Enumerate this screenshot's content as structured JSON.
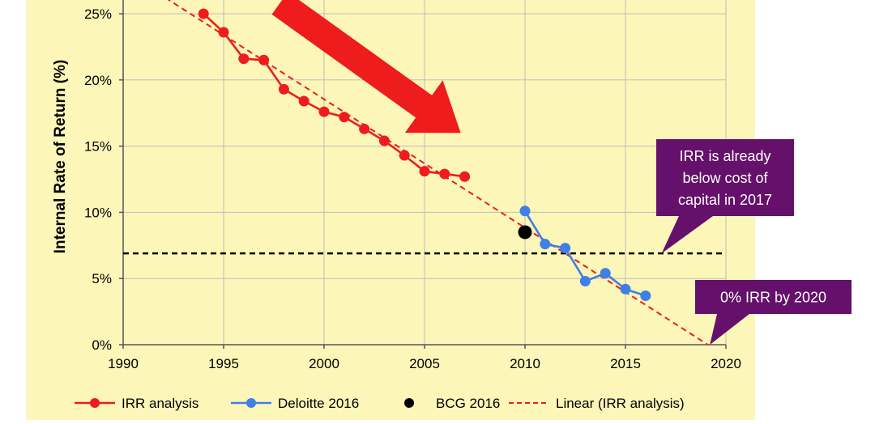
{
  "chart_data": {
    "type": "line",
    "title": "",
    "xlabel": "",
    "ylabel": "Internal Rate of Return (%)",
    "xlim": [
      1990,
      2020
    ],
    "ylim": [
      0,
      25
    ],
    "x_ticks": [
      1990,
      1995,
      2000,
      2005,
      2010,
      2015,
      2020
    ],
    "x_tick_labels": [
      "1990",
      "1995",
      "2000",
      "2005",
      "2010",
      "2015",
      "2020"
    ],
    "y_ticks": [
      0,
      5,
      10,
      15,
      20,
      25
    ],
    "y_tick_labels": [
      "0%",
      "5%",
      "10%",
      "15%",
      "20%",
      "25%"
    ],
    "grid": true,
    "background": "#fdf6b9",
    "series": [
      {
        "name": "IRR analysis",
        "color": "#ee1c1c",
        "x": [
          1994,
          1995,
          1996,
          1997,
          1998,
          1999,
          2000,
          2001,
          2002,
          2003,
          2004,
          2005,
          2006,
          2007
        ],
        "y": [
          25.0,
          23.6,
          21.6,
          21.5,
          19.3,
          18.4,
          17.6,
          17.2,
          16.3,
          15.4,
          14.3,
          13.1,
          12.9,
          12.7
        ]
      },
      {
        "name": "Deloitte 2016",
        "color": "#3f7fe6",
        "x": [
          2010,
          2011,
          2012,
          2013,
          2014,
          2015,
          2016
        ],
        "y": [
          10.1,
          7.6,
          7.3,
          4.8,
          5.4,
          4.2,
          3.7
        ]
      },
      {
        "name": "BCG 2016",
        "color": "#000000",
        "x": [
          2010
        ],
        "y": [
          8.5
        ]
      },
      {
        "name": "Linear (IRR analysis)",
        "color": "#ee1c1c",
        "style": "dashed",
        "x": [
          1991.7,
          2019.1
        ],
        "y": [
          26.6,
          0
        ]
      }
    ],
    "reference_lines": [
      {
        "y": 6.9,
        "color": "#000000",
        "style": "dashed"
      }
    ],
    "annotations": [
      {
        "text_lines": [
          "IRR is already",
          "below cost of",
          "capital in 2017"
        ],
        "fill": "#65106a",
        "text_color": "#ffffff",
        "points_to": [
          2016.8,
          6.9
        ]
      },
      {
        "text_lines": [
          "0% IRR by 2020"
        ],
        "fill": "#65106a",
        "text_color": "#ffffff",
        "points_to": [
          2019.2,
          0
        ]
      },
      {
        "type": "arrow",
        "fill": "#ee1c1c",
        "from": [
          1997.8,
          25.8
        ],
        "to": [
          2006.8,
          16.0
        ]
      }
    ],
    "legend": {
      "position": "bottom",
      "entries": [
        "IRR analysis",
        "Deloitte 2016",
        "BCG 2016",
        "Linear (IRR analysis)"
      ]
    }
  }
}
